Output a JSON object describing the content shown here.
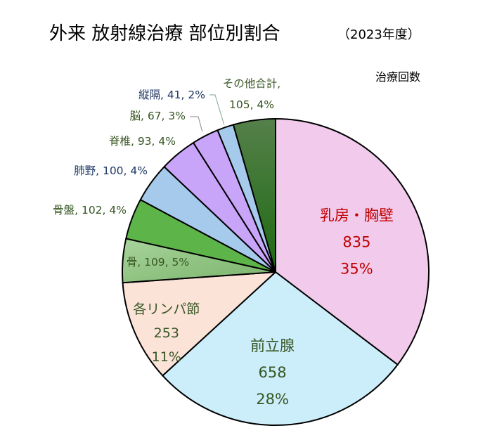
{
  "chart_data": {
    "type": "pie",
    "title": "外来 放射線治療 部位別割合",
    "subtitle": "（2023年度）",
    "corner_label": "治療回数",
    "slices": [
      {
        "name": "乳房・胸壁",
        "value": 835,
        "percent": "35%",
        "color": "#F2CBEC",
        "text_color": "#C00000",
        "label_mode": "inside"
      },
      {
        "name": "前立腺",
        "value": 658,
        "percent": "28%",
        "color": "#CCEEFB",
        "text_color": "#375623",
        "label_mode": "inside"
      },
      {
        "name": "各リンパ節",
        "value": 253,
        "percent": "11%",
        "color": "#FBE3D8",
        "text_color": "#375623",
        "label_mode": "inside"
      },
      {
        "name": "骨",
        "value": 109,
        "percent": "5%",
        "color": "#8CC07E",
        "text_color": "#375623",
        "label_mode": "inside-line",
        "line_text": "骨, 109, 5%"
      },
      {
        "name": "骨盤",
        "value": 102,
        "percent": "4%",
        "color": "#5DB449",
        "text_color": "#375623",
        "label_mode": "outside",
        "line_text": "骨盤, 102, 4%"
      },
      {
        "name": "肺野",
        "value": 100,
        "percent": "4%",
        "color": "#A6CAEC",
        "text_color": "#1F3864",
        "label_mode": "outside",
        "line_text": "肺野, 100, 4%"
      },
      {
        "name": "脊椎",
        "value": 93,
        "percent": "4%",
        "color": "#C9A5FA",
        "text_color": "#375623",
        "label_mode": "outside",
        "line_text": "脊椎, 93, 4%"
      },
      {
        "name": "脳",
        "value": 67,
        "percent": "3%",
        "color": "#C9A5FA",
        "text_color": "#375623",
        "label_mode": "outside",
        "line_text": "脳, 67, 3%"
      },
      {
        "name": "縦隔",
        "value": 41,
        "percent": "2%",
        "color": "#A6CAEC",
        "text_color": "#1F3864",
        "label_mode": "outside",
        "line_text": "縦隔, 41, 2%"
      },
      {
        "name": "その他合計",
        "value": 105,
        "percent": "4%",
        "color": "#3E7A30",
        "text_color": "#375623",
        "label_mode": "outside-two",
        "line_text_1": "その他合計,",
        "line_text_2": "105, 4%"
      }
    ]
  }
}
